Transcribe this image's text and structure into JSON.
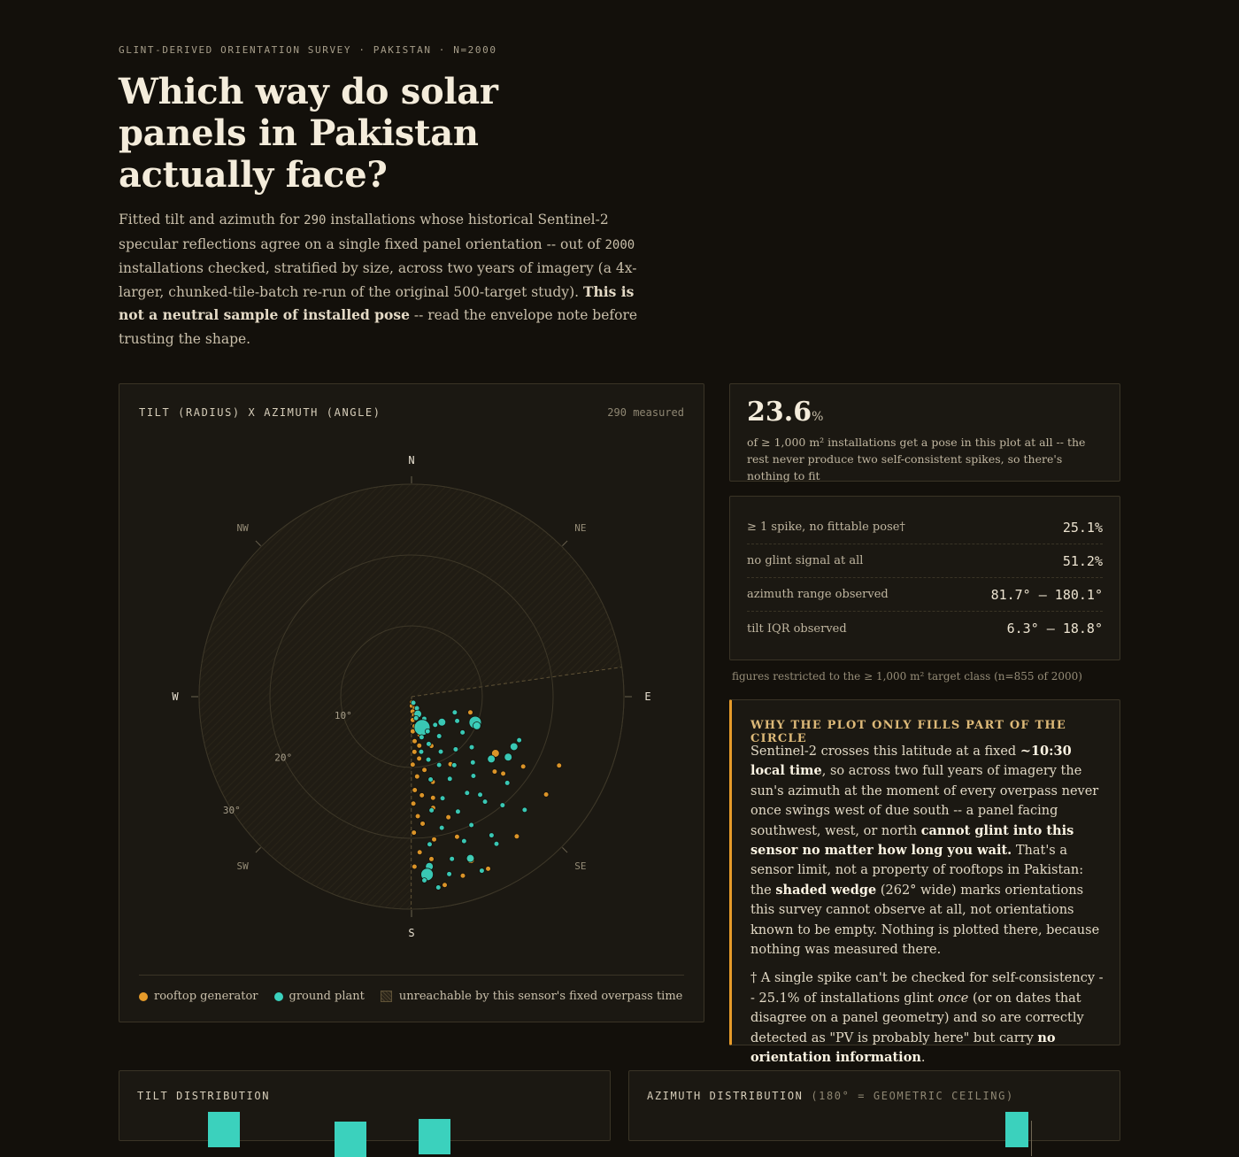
{
  "header": {
    "kicker": "GLINT-DERIVED ORIENTATION SURVEY · PAKISTAN · N=2000",
    "title": "Which way do solar panels in Pakistan actually face?",
    "lede_1": "Fitted tilt and azimuth for ",
    "lede_n_fit": "290",
    "lede_2": " installations whose historical Sentinel-2 specular reflections agree on a single fixed panel orientation -- out of ",
    "lede_n_total": "2000",
    "lede_3": " installations checked, stratified by size, across two years of imagery (a 4x-larger, chunked-tile-batch re-run of the original 500-target study). ",
    "lede_bold": "This is not a neutral sample of installed pose",
    "lede_4": " -- read the envelope note before trusting the shape."
  },
  "polar_panel": {
    "label": "TILT (RADIUS) X AZIMUTH (ANGLE)",
    "count_note": "290 measured",
    "legend": {
      "rooftop": "rooftop generator",
      "ground": "ground plant",
      "unreachable": "unreachable by this sensor's fixed overpass time"
    }
  },
  "stat_card": {
    "value": "23.6",
    "unit": "%",
    "description": "of ≥ 1,000 m² installations get a pose in this plot at all -- the rest never produce two self-consistent spikes, so there's nothing to fit"
  },
  "stats_table": [
    {
      "label": "≥ 1 spike, no fittable pose†",
      "value": "25.1%"
    },
    {
      "label": "no glint signal at all",
      "value": "51.2%"
    },
    {
      "label": "azimuth range observed",
      "value": "81.7° – 180.1°"
    },
    {
      "label": "tilt IQR observed",
      "value": "6.3° – 18.8°"
    }
  ],
  "table_footnote": "figures restricted to the ≥ 1,000 m² target class (n=855 of 2000)",
  "why_card": {
    "title": "WHY THE PLOT ONLY FILLS PART OF THE CIRCLE",
    "p1_a": "Sentinel-2 crosses this latitude at a fixed ",
    "p1_b1": "~10:30 local time",
    "p1_c": ", so across two full years of imagery the sun's azimuth at the moment of every overpass never once swings west of due south -- a panel facing southwest, west, or north ",
    "p1_b2": "cannot glint into this sensor no matter how long you wait.",
    "p1_d": " That's a sensor limit, not a property of rooftops in Pakistan: the ",
    "p1_b3": "shaded wedge",
    "p1_e": " (262° wide) marks orientations this survey cannot observe at all, not orientations known to be empty. Nothing is plotted there, because nothing was measured there.",
    "p2_a": "† A single spike can't be checked for self-consistency -- 25.1% of installations glint ",
    "p2_i": "once",
    "p2_b": " (or on dates that disagree on a panel geometry) and so are correctly detected as \"PV is probably here\" but carry ",
    "p2_bold": "no orientation information",
    "p2_c": "."
  },
  "tilt_distribution": {
    "label": "TILT DISTRIBUTION"
  },
  "azimuth_distribution": {
    "label": "AZIMUTH DISTRIBUTION",
    "note": "(180° = GEOMETRIC CEILING)"
  },
  "colors": {
    "background": "#13100b",
    "panel": "#1b1812",
    "rooftop": "#e69b2a",
    "ground": "#3bd1bd",
    "accent_border": "#e69b2a"
  },
  "chart_data": {
    "type": "scatter",
    "projection": "polar",
    "radius_variable": "tilt (degrees)",
    "angle_variable": "azimuth (degrees, 0 = N, clockwise)",
    "radius_ticks": [
      "10°",
      "20°",
      "30°"
    ],
    "rlim": [
      0,
      30
    ],
    "compass_labels": [
      "N",
      "NE",
      "E",
      "SE",
      "S",
      "SW",
      "W",
      "NW"
    ],
    "unreachable_wedge_deg": [
      180.1,
      82.0
    ],
    "series": [
      {
        "name": "rooftop generator",
        "points": [
          {
            "az": 175,
            "tilt": 0.8,
            "s": 1
          },
          {
            "az": 170,
            "tilt": 1.1,
            "s": 1
          },
          {
            "az": 178,
            "tilt": 1.3,
            "s": 1
          },
          {
            "az": 165,
            "tilt": 1.7,
            "s": 1
          },
          {
            "az": 176,
            "tilt": 2.1,
            "s": 1
          },
          {
            "az": 172,
            "tilt": 2.6,
            "s": 1
          },
          {
            "az": 169,
            "tilt": 3.0,
            "s": 1
          },
          {
            "az": 177,
            "tilt": 3.3,
            "s": 1
          },
          {
            "az": 174,
            "tilt": 4.2,
            "s": 1
          },
          {
            "az": 178,
            "tilt": 4.9,
            "s": 1
          },
          {
            "az": 168,
            "tilt": 5.5,
            "s": 1
          },
          {
            "az": 176,
            "tilt": 6.3,
            "s": 1
          },
          {
            "az": 171,
            "tilt": 7.0,
            "s": 1
          },
          {
            "az": 177,
            "tilt": 7.8,
            "s": 1
          },
          {
            "az": 173,
            "tilt": 8.8,
            "s": 1
          },
          {
            "az": 179,
            "tilt": 9.6,
            "s": 1
          },
          {
            "az": 170,
            "tilt": 10.5,
            "s": 1
          },
          {
            "az": 176,
            "tilt": 11.3,
            "s": 1
          },
          {
            "az": 166,
            "tilt": 12.4,
            "s": 1
          },
          {
            "az": 178,
            "tilt": 13.2,
            "s": 1
          },
          {
            "az": 174,
            "tilt": 14.0,
            "s": 1
          },
          {
            "az": 179,
            "tilt": 15.1,
            "s": 1
          },
          {
            "az": 169,
            "tilt": 16.0,
            "s": 1
          },
          {
            "az": 177,
            "tilt": 16.9,
            "s": 1
          },
          {
            "az": 175,
            "tilt": 18.0,
            "s": 1
          },
          {
            "az": 179,
            "tilt": 19.2,
            "s": 1
          },
          {
            "az": 171,
            "tilt": 20.4,
            "s": 1
          },
          {
            "az": 177,
            "tilt": 22.0,
            "s": 1
          },
          {
            "az": 173,
            "tilt": 23.1,
            "s": 1
          },
          {
            "az": 179,
            "tilt": 24.0,
            "s": 1
          },
          {
            "az": 164,
            "tilt": 26.3,
            "s": 1
          },
          {
            "az": 160,
            "tilt": 24.5,
            "s": 2
          },
          {
            "az": 170,
            "tilt": 27.0,
            "s": 1
          },
          {
            "az": 156,
            "tilt": 26.6,
            "s": 1
          },
          {
            "az": 143,
            "tilt": 24.7,
            "s": 1
          },
          {
            "az": 122,
            "tilt": 18.6,
            "s": 1
          },
          {
            "az": 115,
            "tilt": 23.0,
            "s": 1
          },
          {
            "az": 126,
            "tilt": 23.5,
            "s": 1
          },
          {
            "az": 130,
            "tilt": 16.9,
            "s": 1
          },
          {
            "az": 124,
            "tilt": 14.3,
            "s": 2
          },
          {
            "az": 132,
            "tilt": 15.8,
            "s": 1
          },
          {
            "az": 105,
            "tilt": 8.6,
            "s": 1
          },
          {
            "az": 150,
            "tilt": 11.0,
            "s": 1
          },
          {
            "az": 162,
            "tilt": 20.8,
            "s": 1
          },
          {
            "az": 168,
            "tilt": 14.6,
            "s": 1
          },
          {
            "az": 158,
            "tilt": 7.5,
            "s": 1
          },
          {
            "az": 163,
            "tilt": 17.8,
            "s": 1
          }
        ]
      },
      {
        "name": "ground plant",
        "points": [
          {
            "az": 163,
            "tilt": 0.9,
            "s": 1
          },
          {
            "az": 155,
            "tilt": 1.8,
            "s": 1
          },
          {
            "az": 160,
            "tilt": 2.6,
            "s": 2
          },
          {
            "az": 168,
            "tilt": 3.1,
            "s": 1
          },
          {
            "az": 150,
            "tilt": 3.6,
            "s": 1
          },
          {
            "az": 161,
            "tilt": 4.6,
            "s": 4
          },
          {
            "az": 155,
            "tilt": 5.4,
            "s": 1
          },
          {
            "az": 166,
            "tilt": 5.9,
            "s": 1
          },
          {
            "az": 140,
            "tilt": 5.2,
            "s": 1
          },
          {
            "az": 130,
            "tilt": 5.6,
            "s": 2
          },
          {
            "az": 112,
            "tilt": 9.7,
            "s": 3
          },
          {
            "az": 114,
            "tilt": 10.1,
            "s": 2
          },
          {
            "az": 145,
            "tilt": 6.8,
            "s": 1
          },
          {
            "az": 160,
            "tilt": 7.1,
            "s": 1
          },
          {
            "az": 170,
            "tilt": 7.9,
            "s": 1
          },
          {
            "az": 152,
            "tilt": 8.8,
            "s": 1
          },
          {
            "az": 165,
            "tilt": 9.2,
            "s": 1
          },
          {
            "az": 140,
            "tilt": 9.7,
            "s": 1
          },
          {
            "az": 158,
            "tilt": 10.4,
            "s": 1
          },
          {
            "az": 148,
            "tilt": 11.4,
            "s": 1
          },
          {
            "az": 167,
            "tilt": 12.0,
            "s": 1
          },
          {
            "az": 155,
            "tilt": 12.8,
            "s": 1
          },
          {
            "az": 137,
            "tilt": 12.7,
            "s": 1
          },
          {
            "az": 142,
            "tilt": 14.2,
            "s": 1
          },
          {
            "az": 163,
            "tilt": 15.0,
            "s": 1
          },
          {
            "az": 150,
            "tilt": 15.7,
            "s": 1
          },
          {
            "az": 170,
            "tilt": 16.3,
            "s": 1
          },
          {
            "az": 158,
            "tilt": 17.5,
            "s": 1
          },
          {
            "az": 145,
            "tilt": 18.1,
            "s": 1
          },
          {
            "az": 167,
            "tilt": 19.0,
            "s": 1
          },
          {
            "az": 155,
            "tilt": 20.0,
            "s": 1
          },
          {
            "az": 173,
            "tilt": 21.0,
            "s": 1
          },
          {
            "az": 160,
            "tilt": 21.7,
            "s": 1
          },
          {
            "az": 150,
            "tilt": 22.6,
            "s": 1
          },
          {
            "az": 166,
            "tilt": 23.6,
            "s": 1
          },
          {
            "az": 174,
            "tilt": 24.1,
            "s": 2
          },
          {
            "az": 160,
            "tilt": 24.3,
            "s": 2
          },
          {
            "az": 175,
            "tilt": 25.2,
            "s": 3
          },
          {
            "az": 168,
            "tilt": 25.6,
            "s": 1
          },
          {
            "az": 176,
            "tilt": 26.0,
            "s": 1
          },
          {
            "az": 172,
            "tilt": 27.2,
            "s": 1
          },
          {
            "az": 130,
            "tilt": 11.1,
            "s": 1
          },
          {
            "az": 125,
            "tilt": 8.8,
            "s": 1
          },
          {
            "az": 118,
            "tilt": 7.3,
            "s": 1
          },
          {
            "az": 110,
            "tilt": 6.5,
            "s": 1
          },
          {
            "az": 128,
            "tilt": 14.3,
            "s": 2
          },
          {
            "az": 122,
            "tilt": 16.1,
            "s": 2
          },
          {
            "az": 116,
            "tilt": 16.1,
            "s": 2
          },
          {
            "az": 112,
            "tilt": 16.4,
            "s": 1
          },
          {
            "az": 140,
            "tilt": 20.0,
            "s": 1
          },
          {
            "az": 135,
            "tilt": 22.6,
            "s": 1
          },
          {
            "az": 150,
            "tilt": 24.0,
            "s": 1
          },
          {
            "az": 158,
            "tilt": 26.5,
            "s": 1
          },
          {
            "az": 132,
            "tilt": 18.2,
            "s": 1
          },
          {
            "az": 145,
            "tilt": 16.9,
            "s": 1
          }
        ]
      }
    ]
  }
}
